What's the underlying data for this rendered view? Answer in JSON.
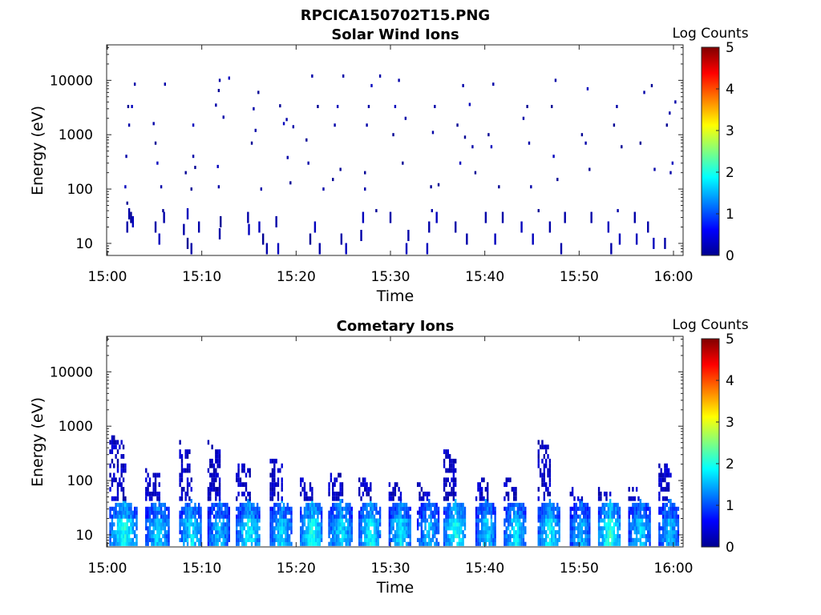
{
  "figure": {
    "title": "RPCICA150702T15.PNG",
    "colorbar_label": "Log Counts",
    "colorbar_ticks": [
      "0",
      "1",
      "2",
      "3",
      "4",
      "5"
    ]
  },
  "chart_data": [
    {
      "type": "heatmap",
      "title": "Solar Wind Ions",
      "xlabel": "Time",
      "ylabel": "Energy (eV)",
      "xticks": [
        "15:00",
        "15:10",
        "15:20",
        "15:30",
        "15:40",
        "15:50",
        "16:00"
      ],
      "yticks": [
        "10",
        "100",
        "1000",
        "10000"
      ],
      "y_scale": "log",
      "ylim_eV": [
        6,
        45000
      ],
      "colorbar": {
        "label": "Log Counts",
        "range": [
          0,
          5
        ],
        "colormap": "jet"
      },
      "points": [
        [
          1.8,
          110,
          0.3
        ],
        [
          2.0,
          55,
          0.1
        ],
        [
          2.2,
          35,
          0.2
        ],
        [
          2.4,
          30,
          0.1
        ],
        [
          2.0,
          20,
          0.2
        ],
        [
          2.6,
          25,
          0.3
        ],
        [
          1.9,
          400,
          0.2
        ],
        [
          2.2,
          1500,
          0.2
        ],
        [
          2.5,
          3300,
          0.3
        ],
        [
          2.8,
          8500,
          0.2
        ],
        [
          2.1,
          3300,
          0.1
        ],
        [
          4.8,
          1600,
          0.2
        ],
        [
          5.0,
          700,
          0.1
        ],
        [
          5.2,
          300,
          0.3
        ],
        [
          5.6,
          110,
          0.2
        ],
        [
          5.8,
          40,
          0.1
        ],
        [
          5.9,
          30,
          0.2
        ],
        [
          5.0,
          20,
          0.2
        ],
        [
          5.4,
          12,
          0.3
        ],
        [
          6.0,
          8500,
          0.2
        ],
        [
          8.2,
          200,
          0.1
        ],
        [
          8.4,
          35,
          0.3
        ],
        [
          8.0,
          18,
          0.2
        ],
        [
          8.4,
          10,
          0.1
        ],
        [
          8.8,
          8,
          0.2
        ],
        [
          9.0,
          1500,
          0.3
        ],
        [
          9.2,
          250,
          0.1
        ],
        [
          9.6,
          20,
          0.2
        ],
        [
          9.0,
          400,
          0.2
        ],
        [
          8.8,
          100,
          0.1
        ],
        [
          11.4,
          3500,
          0.2
        ],
        [
          11.7,
          6500,
          0.1
        ],
        [
          11.8,
          10000,
          0.2
        ],
        [
          11.6,
          260,
          0.3
        ],
        [
          11.7,
          110,
          0.2
        ],
        [
          11.9,
          25,
          0.1
        ],
        [
          12.2,
          2100,
          0.2
        ],
        [
          12.8,
          11000,
          0.3
        ],
        [
          11.8,
          15,
          0.2
        ],
        [
          14.8,
          30,
          0.2
        ],
        [
          14.9,
          18,
          0.3
        ],
        [
          15.2,
          700,
          0.1
        ],
        [
          15.6,
          1200,
          0.2
        ],
        [
          15.9,
          6000,
          0.1
        ],
        [
          16.2,
          100,
          0.2
        ],
        [
          16.0,
          20,
          0.3
        ],
        [
          16.4,
          12,
          0.1
        ],
        [
          15.4,
          3000,
          0.2
        ],
        [
          16.8,
          8,
          0.2
        ],
        [
          17.8,
          25,
          0.2
        ],
        [
          18.2,
          3400,
          0.1
        ],
        [
          18.6,
          1600,
          0.3
        ],
        [
          19.0,
          380,
          0.2
        ],
        [
          19.3,
          130,
          0.1
        ],
        [
          18.9,
          1900,
          0.2
        ],
        [
          18.0,
          8,
          0.3
        ],
        [
          19.6,
          1400,
          0.2
        ],
        [
          21.0,
          800,
          0.1
        ],
        [
          21.2,
          300,
          0.2
        ],
        [
          21.6,
          12000,
          0.2
        ],
        [
          21.9,
          20,
          0.3
        ],
        [
          22.2,
          3300,
          0.1
        ],
        [
          22.8,
          100,
          0.2
        ],
        [
          22.4,
          8,
          0.2
        ],
        [
          21.4,
          12,
          0.1
        ],
        [
          24.0,
          1500,
          0.2
        ],
        [
          24.3,
          3300,
          0.3
        ],
        [
          24.6,
          230,
          0.1
        ],
        [
          24.9,
          12000,
          0.2
        ],
        [
          25.2,
          8,
          0.3
        ],
        [
          24.7,
          12,
          0.2
        ],
        [
          23.8,
          150,
          0.1
        ],
        [
          26.8,
          14,
          0.2
        ],
        [
          27.0,
          30,
          0.3
        ],
        [
          27.2,
          200,
          0.1
        ],
        [
          27.4,
          1500,
          0.2
        ],
        [
          27.6,
          3300,
          0.2
        ],
        [
          27.9,
          8000,
          0.3
        ],
        [
          28.4,
          40,
          0.1
        ],
        [
          28.8,
          12000,
          0.2
        ],
        [
          27.2,
          100,
          0.2
        ],
        [
          29.9,
          30,
          0.2
        ],
        [
          30.2,
          1000,
          0.1
        ],
        [
          30.4,
          3300,
          0.3
        ],
        [
          30.8,
          10000,
          0.2
        ],
        [
          31.2,
          300,
          0.1
        ],
        [
          31.5,
          2000,
          0.2
        ],
        [
          31.6,
          8,
          0.3
        ],
        [
          31.8,
          14,
          0.2
        ],
        [
          33.8,
          8,
          0.3
        ],
        [
          34.0,
          20,
          0.2
        ],
        [
          34.2,
          110,
          0.1
        ],
        [
          34.4,
          1100,
          0.2
        ],
        [
          34.6,
          3300,
          0.2
        ],
        [
          34.8,
          30,
          0.3
        ],
        [
          35.0,
          120,
          0.1
        ],
        [
          34.3,
          40,
          0.2
        ],
        [
          36.8,
          20,
          0.2
        ],
        [
          37.0,
          1500,
          0.1
        ],
        [
          37.3,
          300,
          0.3
        ],
        [
          37.6,
          8000,
          0.2
        ],
        [
          37.8,
          900,
          0.1
        ],
        [
          38.0,
          12,
          0.2
        ],
        [
          38.3,
          3600,
          0.3
        ],
        [
          38.6,
          600,
          0.2
        ],
        [
          38.9,
          200,
          0.1
        ],
        [
          40.0,
          30,
          0.2
        ],
        [
          40.3,
          1000,
          0.1
        ],
        [
          40.6,
          600,
          0.3
        ],
        [
          40.8,
          8500,
          0.2
        ],
        [
          41.0,
          12,
          0.3
        ],
        [
          41.4,
          110,
          0.1
        ],
        [
          41.8,
          30,
          0.2
        ],
        [
          43.8,
          20,
          0.3
        ],
        [
          44.0,
          2000,
          0.2
        ],
        [
          44.4,
          3300,
          0.1
        ],
        [
          44.8,
          110,
          0.2
        ],
        [
          45.0,
          12,
          0.3
        ],
        [
          44.6,
          700,
          0.2
        ],
        [
          45.6,
          40,
          0.1
        ],
        [
          46.8,
          20,
          0.2
        ],
        [
          47.0,
          3300,
          0.1
        ],
        [
          47.4,
          10000,
          0.2
        ],
        [
          47.2,
          400,
          0.3
        ],
        [
          47.6,
          150,
          0.1
        ],
        [
          48.0,
          8,
          0.2
        ],
        [
          48.4,
          30,
          0.2
        ],
        [
          50.2,
          1000,
          0.1
        ],
        [
          50.6,
          700,
          0.2
        ],
        [
          50.8,
          7000,
          0.3
        ],
        [
          51.0,
          230,
          0.1
        ],
        [
          51.2,
          30,
          0.2
        ],
        [
          53.0,
          20,
          0.3
        ],
        [
          53.3,
          8,
          0.2
        ],
        [
          53.6,
          1500,
          0.1
        ],
        [
          53.9,
          3300,
          0.2
        ],
        [
          54.0,
          40,
          0.2
        ],
        [
          54.4,
          600,
          0.1
        ],
        [
          54.2,
          12,
          0.3
        ],
        [
          55.8,
          30,
          0.2
        ],
        [
          56.0,
          12,
          0.3
        ],
        [
          56.4,
          700,
          0.1
        ],
        [
          56.8,
          6000,
          0.2
        ],
        [
          57.2,
          20,
          0.2
        ],
        [
          57.6,
          8000,
          0.1
        ],
        [
          57.9,
          230,
          0.2
        ],
        [
          57.8,
          10,
          0.3
        ],
        [
          59.0,
          10,
          0.2
        ],
        [
          59.2,
          1500,
          0.1
        ],
        [
          59.5,
          2500,
          0.2
        ],
        [
          59.8,
          300,
          0.3
        ],
        [
          60.1,
          4000,
          0.2
        ],
        [
          59.6,
          200,
          0.2
        ]
      ]
    },
    {
      "type": "heatmap",
      "title": "Cometary Ions",
      "xlabel": "Time",
      "ylabel": "Energy (eV)",
      "xticks": [
        "15:00",
        "15:10",
        "15:20",
        "15:30",
        "15:40",
        "15:50",
        "16:00"
      ],
      "yticks": [
        "10",
        "100",
        "1000",
        "10000"
      ],
      "y_scale": "log",
      "ylim_eV": [
        6,
        45000
      ],
      "colorbar": {
        "label": "Log Counts",
        "range": [
          0,
          5
        ],
        "colormap": "jet"
      },
      "bursts": [
        {
          "start_min": 0.2,
          "width_min": 3.0,
          "top_eV": 600,
          "peak": 1.9
        },
        {
          "start_min": 4.0,
          "width_min": 2.6,
          "top_eV": 160,
          "peak": 1.6
        },
        {
          "start_min": 7.6,
          "width_min": 2.4,
          "top_eV": 470,
          "peak": 1.7
        },
        {
          "start_min": 10.6,
          "width_min": 2.4,
          "top_eV": 460,
          "peak": 1.5
        },
        {
          "start_min": 13.6,
          "width_min": 2.6,
          "top_eV": 200,
          "peak": 1.8
        },
        {
          "start_min": 17.2,
          "width_min": 2.4,
          "top_eV": 270,
          "peak": 1.6
        },
        {
          "start_min": 20.4,
          "width_min": 2.4,
          "top_eV": 100,
          "peak": 1.9
        },
        {
          "start_min": 23.4,
          "width_min": 2.6,
          "top_eV": 150,
          "peak": 1.7
        },
        {
          "start_min": 26.6,
          "width_min": 2.4,
          "top_eV": 110,
          "peak": 1.8
        },
        {
          "start_min": 29.8,
          "width_min": 2.4,
          "top_eV": 100,
          "peak": 1.7
        },
        {
          "start_min": 32.8,
          "width_min": 2.4,
          "top_eV": 80,
          "peak": 1.5
        },
        {
          "start_min": 35.6,
          "width_min": 2.4,
          "top_eV": 350,
          "peak": 1.9
        },
        {
          "start_min": 39.0,
          "width_min": 2.2,
          "top_eV": 120,
          "peak": 1.6
        },
        {
          "start_min": 42.0,
          "width_min": 2.4,
          "top_eV": 110,
          "peak": 1.7
        },
        {
          "start_min": 45.6,
          "width_min": 2.4,
          "top_eV": 520,
          "peak": 1.8
        },
        {
          "start_min": 49.0,
          "width_min": 2.2,
          "top_eV": 70,
          "peak": 1.5
        },
        {
          "start_min": 52.0,
          "width_min": 2.4,
          "top_eV": 70,
          "peak": 2.0
        },
        {
          "start_min": 55.2,
          "width_min": 2.4,
          "top_eV": 80,
          "peak": 1.6
        },
        {
          "start_min": 58.4,
          "width_min": 2.2,
          "top_eV": 210,
          "peak": 1.5
        }
      ]
    }
  ]
}
